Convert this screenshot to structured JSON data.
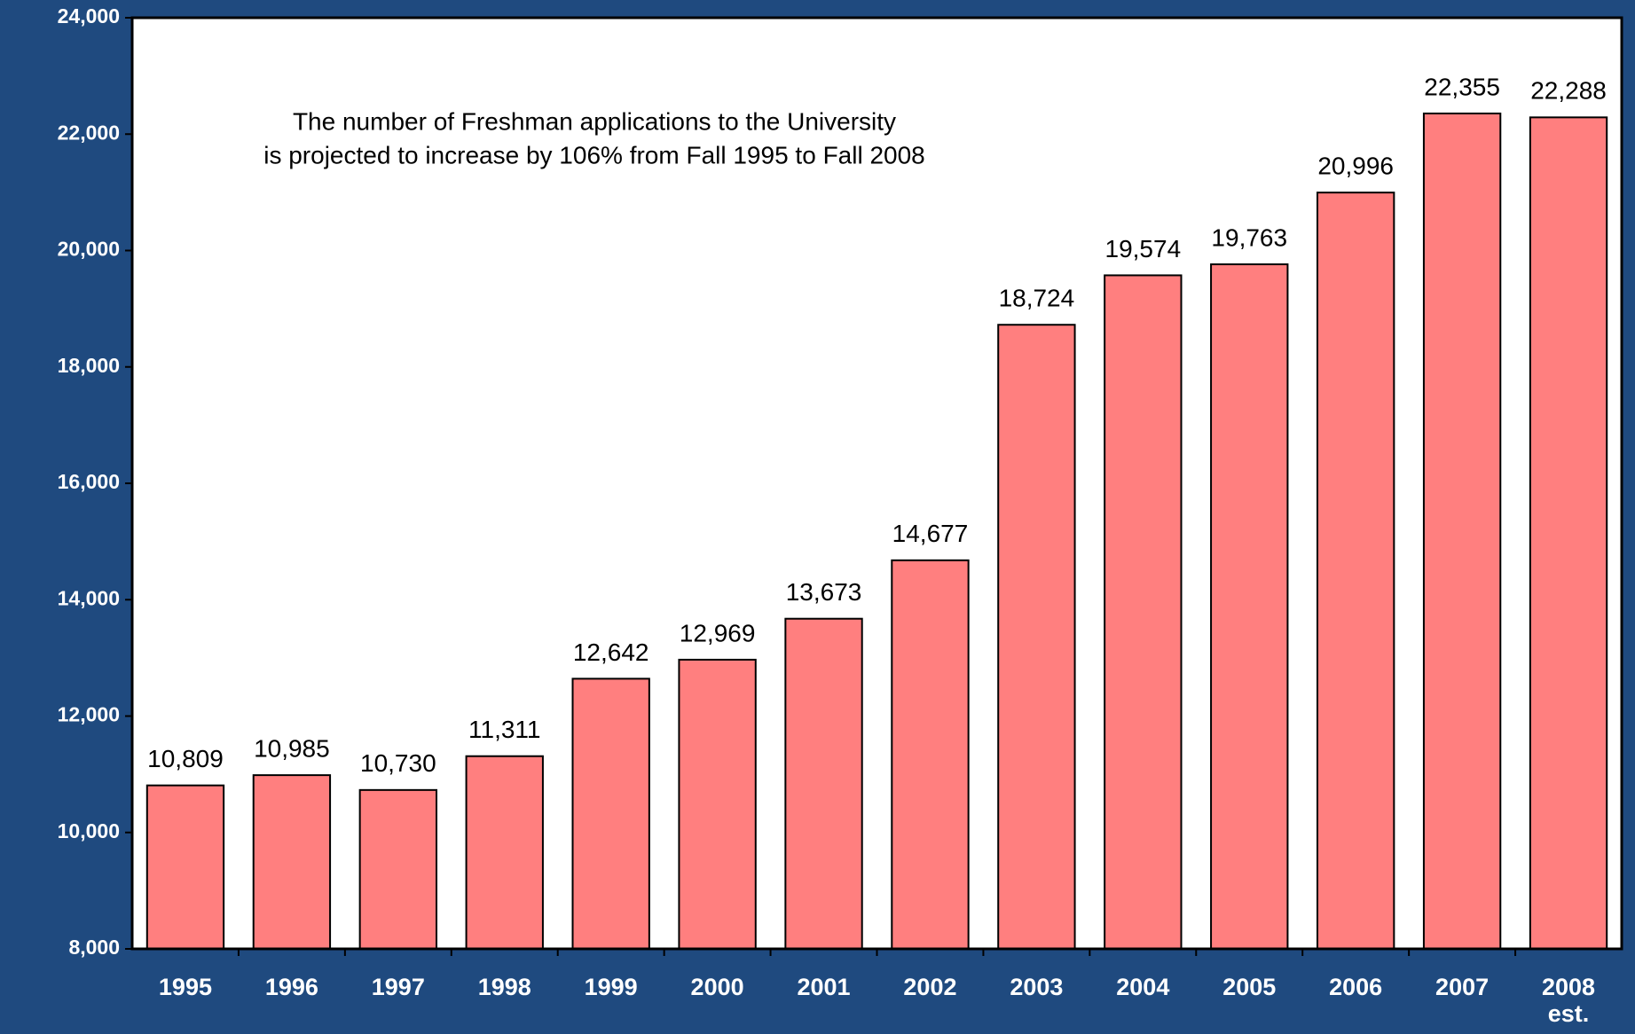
{
  "chart_data": {
    "type": "bar",
    "annotation": [
      "The number of Freshman applications to the University",
      "is projected to increase by 106% from Fall 1995 to Fall 2008"
    ],
    "categories": [
      "1995",
      "1996",
      "1997",
      "1998",
      "1999",
      "2000",
      "2001",
      "2002",
      "2003",
      "2004",
      "2005",
      "2006",
      "2007",
      "2008 est."
    ],
    "values": [
      10809,
      10985,
      10730,
      11311,
      12642,
      12969,
      13673,
      14677,
      18724,
      19574,
      19763,
      20996,
      22355,
      22288
    ],
    "value_labels": [
      "10,809",
      "10,985",
      "10,730",
      "11,311",
      "12,642",
      "12,969",
      "13,673",
      "14,677",
      "18,724",
      "19,574",
      "19,763",
      "20,996",
      "22,355",
      "22,288"
    ],
    "color": "#ff7f7f",
    "ylim": [
      8000,
      24000
    ],
    "yticks": [
      {
        "value": 8000,
        "label": "8,000"
      },
      {
        "value": 10000,
        "label": "10,000"
      },
      {
        "value": 12000,
        "label": "12,000"
      },
      {
        "value": 14000,
        "label": "14,000"
      },
      {
        "value": 16000,
        "label": "16,000"
      },
      {
        "value": 18000,
        "label": "18,000"
      },
      {
        "value": 20000,
        "label": "20,000"
      },
      {
        "value": 22000,
        "label": "22,000"
      },
      {
        "value": 24000,
        "label": "24,000"
      }
    ],
    "grid": false
  }
}
